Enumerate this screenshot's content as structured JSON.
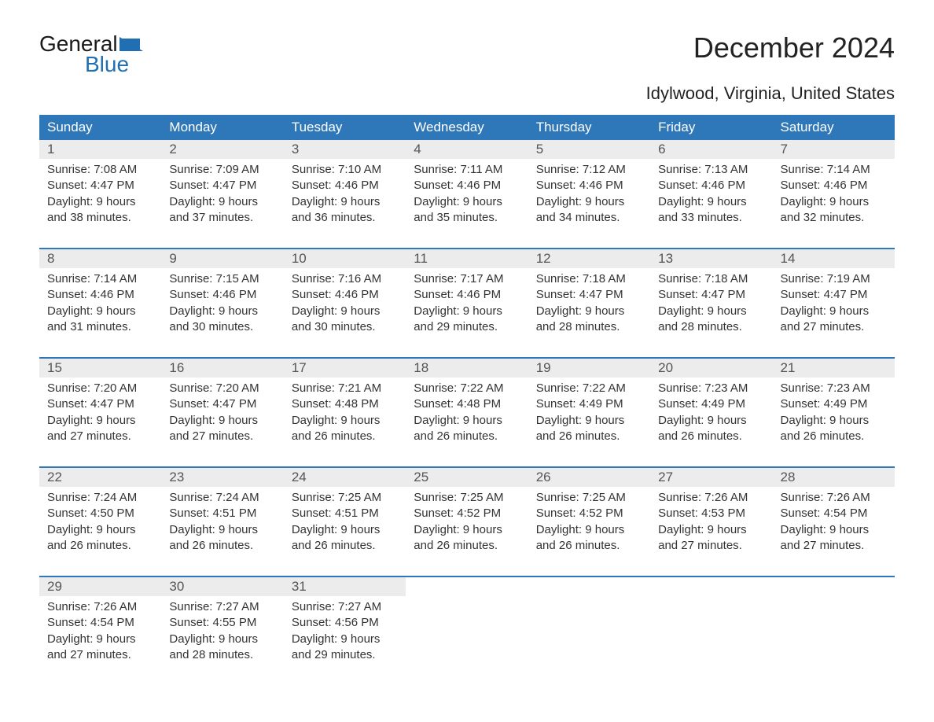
{
  "logo": {
    "part1": "General",
    "part2": "Blue",
    "color_accent": "#1f6fb2",
    "shape_color": "#1f6fb2"
  },
  "title": "December 2024",
  "subtitle": "Idylwood, Virginia, United States",
  "colors": {
    "header_bg": "#2e77b8",
    "header_text": "#ffffff",
    "daynum_bg": "#ececec",
    "daynum_text": "#555555",
    "body_text": "#333333",
    "rule": "#2e77b8",
    "page_bg": "#ffffff"
  },
  "fonts": {
    "title_pt": 36,
    "subtitle_pt": 22,
    "header_pt": 17,
    "daynum_pt": 17,
    "body_pt": 15
  },
  "day_headers": [
    "Sunday",
    "Monday",
    "Tuesday",
    "Wednesday",
    "Thursday",
    "Friday",
    "Saturday"
  ],
  "weeks": [
    [
      {
        "n": "1",
        "sunrise": "7:08 AM",
        "sunset": "4:47 PM",
        "dl1": "9 hours",
        "dl2": "and 38 minutes."
      },
      {
        "n": "2",
        "sunrise": "7:09 AM",
        "sunset": "4:47 PM",
        "dl1": "9 hours",
        "dl2": "and 37 minutes."
      },
      {
        "n": "3",
        "sunrise": "7:10 AM",
        "sunset": "4:46 PM",
        "dl1": "9 hours",
        "dl2": "and 36 minutes."
      },
      {
        "n": "4",
        "sunrise": "7:11 AM",
        "sunset": "4:46 PM",
        "dl1": "9 hours",
        "dl2": "and 35 minutes."
      },
      {
        "n": "5",
        "sunrise": "7:12 AM",
        "sunset": "4:46 PM",
        "dl1": "9 hours",
        "dl2": "and 34 minutes."
      },
      {
        "n": "6",
        "sunrise": "7:13 AM",
        "sunset": "4:46 PM",
        "dl1": "9 hours",
        "dl2": "and 33 minutes."
      },
      {
        "n": "7",
        "sunrise": "7:14 AM",
        "sunset": "4:46 PM",
        "dl1": "9 hours",
        "dl2": "and 32 minutes."
      }
    ],
    [
      {
        "n": "8",
        "sunrise": "7:14 AM",
        "sunset": "4:46 PM",
        "dl1": "9 hours",
        "dl2": "and 31 minutes."
      },
      {
        "n": "9",
        "sunrise": "7:15 AM",
        "sunset": "4:46 PM",
        "dl1": "9 hours",
        "dl2": "and 30 minutes."
      },
      {
        "n": "10",
        "sunrise": "7:16 AM",
        "sunset": "4:46 PM",
        "dl1": "9 hours",
        "dl2": "and 30 minutes."
      },
      {
        "n": "11",
        "sunrise": "7:17 AM",
        "sunset": "4:46 PM",
        "dl1": "9 hours",
        "dl2": "and 29 minutes."
      },
      {
        "n": "12",
        "sunrise": "7:18 AM",
        "sunset": "4:47 PM",
        "dl1": "9 hours",
        "dl2": "and 28 minutes."
      },
      {
        "n": "13",
        "sunrise": "7:18 AM",
        "sunset": "4:47 PM",
        "dl1": "9 hours",
        "dl2": "and 28 minutes."
      },
      {
        "n": "14",
        "sunrise": "7:19 AM",
        "sunset": "4:47 PM",
        "dl1": "9 hours",
        "dl2": "and 27 minutes."
      }
    ],
    [
      {
        "n": "15",
        "sunrise": "7:20 AM",
        "sunset": "4:47 PM",
        "dl1": "9 hours",
        "dl2": "and 27 minutes."
      },
      {
        "n": "16",
        "sunrise": "7:20 AM",
        "sunset": "4:47 PM",
        "dl1": "9 hours",
        "dl2": "and 27 minutes."
      },
      {
        "n": "17",
        "sunrise": "7:21 AM",
        "sunset": "4:48 PM",
        "dl1": "9 hours",
        "dl2": "and 26 minutes."
      },
      {
        "n": "18",
        "sunrise": "7:22 AM",
        "sunset": "4:48 PM",
        "dl1": "9 hours",
        "dl2": "and 26 minutes."
      },
      {
        "n": "19",
        "sunrise": "7:22 AM",
        "sunset": "4:49 PM",
        "dl1": "9 hours",
        "dl2": "and 26 minutes."
      },
      {
        "n": "20",
        "sunrise": "7:23 AM",
        "sunset": "4:49 PM",
        "dl1": "9 hours",
        "dl2": "and 26 minutes."
      },
      {
        "n": "21",
        "sunrise": "7:23 AM",
        "sunset": "4:49 PM",
        "dl1": "9 hours",
        "dl2": "and 26 minutes."
      }
    ],
    [
      {
        "n": "22",
        "sunrise": "7:24 AM",
        "sunset": "4:50 PM",
        "dl1": "9 hours",
        "dl2": "and 26 minutes."
      },
      {
        "n": "23",
        "sunrise": "7:24 AM",
        "sunset": "4:51 PM",
        "dl1": "9 hours",
        "dl2": "and 26 minutes."
      },
      {
        "n": "24",
        "sunrise": "7:25 AM",
        "sunset": "4:51 PM",
        "dl1": "9 hours",
        "dl2": "and 26 minutes."
      },
      {
        "n": "25",
        "sunrise": "7:25 AM",
        "sunset": "4:52 PM",
        "dl1": "9 hours",
        "dl2": "and 26 minutes."
      },
      {
        "n": "26",
        "sunrise": "7:25 AM",
        "sunset": "4:52 PM",
        "dl1": "9 hours",
        "dl2": "and 26 minutes."
      },
      {
        "n": "27",
        "sunrise": "7:26 AM",
        "sunset": "4:53 PM",
        "dl1": "9 hours",
        "dl2": "and 27 minutes."
      },
      {
        "n": "28",
        "sunrise": "7:26 AM",
        "sunset": "4:54 PM",
        "dl1": "9 hours",
        "dl2": "and 27 minutes."
      }
    ],
    [
      {
        "n": "29",
        "sunrise": "7:26 AM",
        "sunset": "4:54 PM",
        "dl1": "9 hours",
        "dl2": "and 27 minutes."
      },
      {
        "n": "30",
        "sunrise": "7:27 AM",
        "sunset": "4:55 PM",
        "dl1": "9 hours",
        "dl2": "and 28 minutes."
      },
      {
        "n": "31",
        "sunrise": "7:27 AM",
        "sunset": "4:56 PM",
        "dl1": "9 hours",
        "dl2": "and 29 minutes."
      },
      null,
      null,
      null,
      null
    ]
  ],
  "labels": {
    "sunrise": "Sunrise: ",
    "sunset": "Sunset: ",
    "daylight": "Daylight: "
  }
}
